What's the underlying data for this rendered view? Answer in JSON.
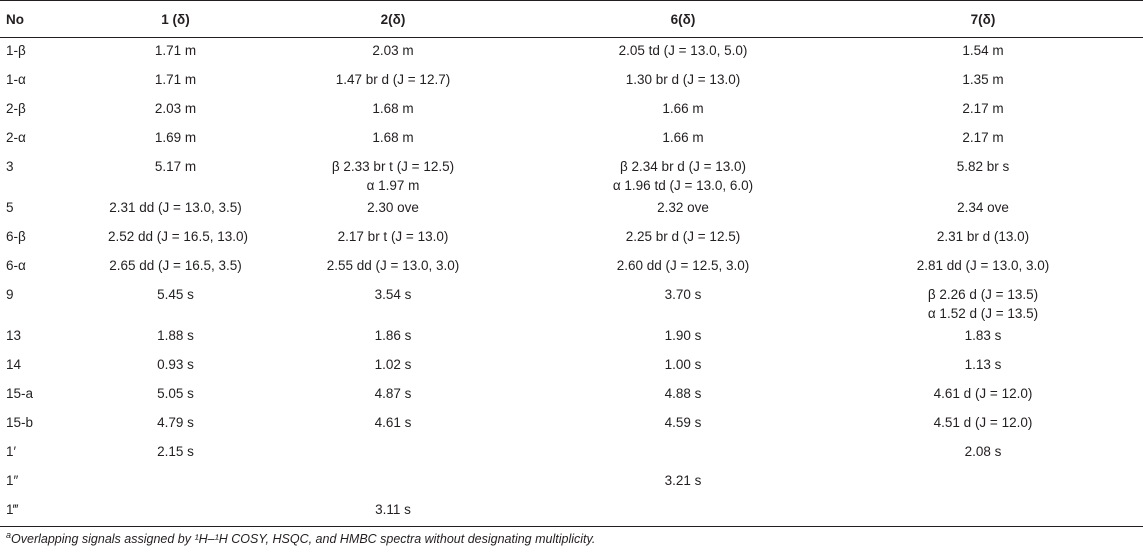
{
  "headers": [
    "No",
    "1 (δ)",
    "2(δ)",
    "6(δ)",
    "7(δ)"
  ],
  "rows": [
    {
      "no": "1-β",
      "c1": [
        "1.71 m"
      ],
      "c2": [
        "2.03 m"
      ],
      "c3": [
        "2.05 td (J = 13.0, 5.0)"
      ],
      "c4": [
        "1.54 m"
      ]
    },
    {
      "no": "1-α",
      "c1": [
        "1.71 m"
      ],
      "c2": [
        "1.47 br d (J = 12.7)"
      ],
      "c3": [
        "1.30 br d (J = 13.0)"
      ],
      "c4": [
        "1.35 m"
      ]
    },
    {
      "no": "2-β",
      "c1": [
        "2.03 m"
      ],
      "c2": [
        "1.68 m"
      ],
      "c3": [
        "1.66 m"
      ],
      "c4": [
        "2.17 m"
      ]
    },
    {
      "no": "2-α",
      "c1": [
        "1.69 m"
      ],
      "c2": [
        "1.68 m"
      ],
      "c3": [
        "1.66 m"
      ],
      "c4": [
        "2.17 m"
      ]
    },
    {
      "no": "3",
      "c1": [
        "5.17 m"
      ],
      "c2": [
        "β 2.33 br t (J = 12.5)",
        "α 1.97 m"
      ],
      "c3": [
        "β 2.34 br d (J = 13.0)",
        "α 1.96 td (J = 13.0, 6.0)"
      ],
      "c4": [
        "5.82 br s"
      ]
    },
    {
      "no": "5",
      "c1": [
        "2.31 dd (J = 13.0, 3.5)"
      ],
      "c2": [
        "2.30 ove"
      ],
      "c3": [
        "2.32 ove"
      ],
      "c4": [
        "2.34 ove"
      ]
    },
    {
      "no": "6-β",
      "c1": [
        "2.52 dd (J = 16.5, 13.0)"
      ],
      "c2": [
        "2.17 br t (J = 13.0)"
      ],
      "c3": [
        "2.25 br d (J = 12.5)"
      ],
      "c4": [
        "2.31 br d (13.0)"
      ]
    },
    {
      "no": "6-α",
      "c1": [
        "2.65 dd (J = 16.5, 3.5)"
      ],
      "c2": [
        "2.55 dd (J = 13.0, 3.0)"
      ],
      "c3": [
        "2.60 dd (J = 12.5, 3.0)"
      ],
      "c4": [
        "2.81 dd (J = 13.0, 3.0)"
      ]
    },
    {
      "no": "9",
      "c1": [
        "5.45 s"
      ],
      "c2": [
        "3.54 s"
      ],
      "c3": [
        "3.70 s"
      ],
      "c4": [
        "β 2.26 d (J = 13.5)",
        "α 1.52 d (J = 13.5)"
      ]
    },
    {
      "no": "13",
      "c1": [
        "1.88 s"
      ],
      "c2": [
        "1.86 s"
      ],
      "c3": [
        "1.90 s"
      ],
      "c4": [
        "1.83 s"
      ]
    },
    {
      "no": "14",
      "c1": [
        "0.93 s"
      ],
      "c2": [
        "1.02 s"
      ],
      "c3": [
        "1.00 s"
      ],
      "c4": [
        "1.13 s"
      ]
    },
    {
      "no": "15-a",
      "c1": [
        "5.05 s"
      ],
      "c2": [
        "4.87 s"
      ],
      "c3": [
        "4.88 s"
      ],
      "c4": [
        "4.61 d (J = 12.0)"
      ]
    },
    {
      "no": "15-b",
      "c1": [
        "4.79 s"
      ],
      "c2": [
        "4.61 s"
      ],
      "c3": [
        "4.59 s"
      ],
      "c4": [
        "4.51 d (J = 12.0)"
      ]
    },
    {
      "no": "1′",
      "c1": [
        "2.15 s"
      ],
      "c2": [],
      "c3": [],
      "c4": [
        "2.08 s"
      ]
    },
    {
      "no": "1″",
      "c1": [],
      "c2": [],
      "c3": [
        "3.21 s"
      ],
      "c4": []
    },
    {
      "no": "1‴",
      "c1": [],
      "c2": [
        "3.11 s"
      ],
      "c3": [],
      "c4": []
    }
  ],
  "footnote": {
    "marker": "a",
    "text": "Overlapping signals assigned by ¹H–¹H COSY, HSQC, and HMBC spectra without designating multiplicity."
  }
}
